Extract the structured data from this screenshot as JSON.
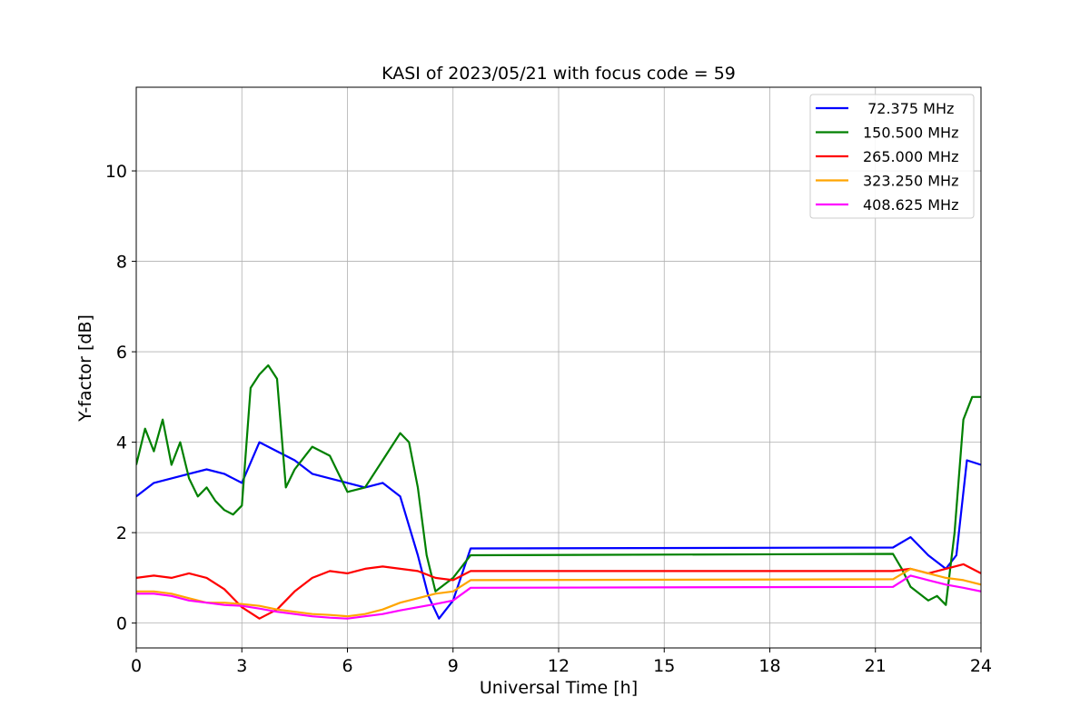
{
  "chart_data": {
    "type": "line",
    "title": "KASI of 2023/05/21 with focus code = 59",
    "xlabel": "Universal Time [h]",
    "ylabel": "Y-factor [dB]",
    "xlim": [
      0,
      24
    ],
    "ylim": [
      -0.55,
      11.85
    ],
    "xticks": [
      0,
      3,
      6,
      9,
      12,
      15,
      18,
      21,
      24
    ],
    "yticks": [
      0,
      2,
      4,
      6,
      8,
      10
    ],
    "grid": true,
    "legend_position": "top-right",
    "series": [
      {
        "name": " 72.375 MHz",
        "color": "#0000ff",
        "x": [
          0,
          0.5,
          1,
          1.5,
          2,
          2.5,
          3,
          3.5,
          4,
          4.5,
          5,
          5.5,
          6,
          6.5,
          7,
          7.5,
          8,
          8.3,
          8.6,
          9,
          9.5,
          21.5,
          22,
          22.5,
          23,
          23.3,
          23.6,
          24
        ],
        "y": [
          2.8,
          3.1,
          3.2,
          3.3,
          3.4,
          3.3,
          3.1,
          4.0,
          3.8,
          3.6,
          3.3,
          3.2,
          3.1,
          3.0,
          3.1,
          2.8,
          1.5,
          0.6,
          0.1,
          0.5,
          1.65,
          1.67,
          1.9,
          1.5,
          1.2,
          1.5,
          3.6,
          3.5
        ]
      },
      {
        "name": "150.500 MHz",
        "color": "#008000",
        "x": [
          0,
          0.25,
          0.5,
          0.75,
          1,
          1.25,
          1.5,
          1.75,
          2,
          2.25,
          2.5,
          2.75,
          3,
          3.25,
          3.5,
          3.75,
          4,
          4.25,
          4.5,
          5,
          5.5,
          6,
          6.5,
          7,
          7.5,
          7.75,
          8,
          8.25,
          8.5,
          9,
          9.5,
          21.5,
          21.75,
          22,
          22.5,
          22.75,
          23,
          23.25,
          23.5,
          23.75,
          24
        ],
        "y": [
          3.5,
          4.3,
          3.8,
          4.5,
          3.5,
          4.0,
          3.2,
          2.8,
          3.0,
          2.7,
          2.5,
          2.4,
          2.6,
          5.2,
          5.5,
          5.7,
          5.4,
          3.0,
          3.4,
          3.9,
          3.7,
          2.9,
          3.0,
          3.6,
          4.2,
          4.0,
          3.0,
          1.5,
          0.7,
          1.0,
          1.5,
          1.53,
          1.2,
          0.8,
          0.5,
          0.6,
          0.4,
          2.0,
          4.5,
          5.0,
          5.0
        ]
      },
      {
        "name": "265.000 MHz",
        "color": "#ff0000",
        "x": [
          0,
          0.5,
          1,
          1.5,
          2,
          2.5,
          3,
          3.5,
          4,
          4.5,
          5,
          5.5,
          6,
          6.5,
          7,
          7.5,
          8,
          8.5,
          9,
          9.5,
          21.5,
          22,
          22.5,
          23,
          23.5,
          24
        ],
        "y": [
          1.0,
          1.05,
          1.0,
          1.1,
          1.0,
          0.75,
          0.35,
          0.1,
          0.3,
          0.7,
          1.0,
          1.15,
          1.1,
          1.2,
          1.25,
          1.2,
          1.15,
          1.0,
          0.95,
          1.15,
          1.15,
          1.2,
          1.1,
          1.2,
          1.3,
          1.1
        ]
      },
      {
        "name": "323.250 MHz",
        "color": "#ffa500",
        "x": [
          0,
          0.5,
          1,
          1.5,
          2,
          2.5,
          3,
          3.5,
          4,
          4.5,
          5,
          5.5,
          6,
          6.5,
          7,
          7.5,
          8,
          8.5,
          9,
          9.5,
          21.5,
          22,
          22.5,
          23,
          23.5,
          24
        ],
        "y": [
          0.7,
          0.7,
          0.65,
          0.55,
          0.45,
          0.45,
          0.42,
          0.38,
          0.3,
          0.25,
          0.2,
          0.18,
          0.15,
          0.2,
          0.3,
          0.45,
          0.55,
          0.65,
          0.7,
          0.95,
          0.97,
          1.2,
          1.1,
          1.0,
          0.95,
          0.85
        ]
      },
      {
        "name": "408.625 MHz",
        "color": "#ff00ff",
        "x": [
          0,
          0.5,
          1,
          1.5,
          2,
          2.5,
          3,
          3.5,
          4,
          4.5,
          5,
          5.5,
          6,
          6.5,
          7,
          7.5,
          8,
          8.5,
          9,
          9.5,
          21.5,
          22,
          22.5,
          23,
          23.5,
          24
        ],
        "y": [
          0.65,
          0.65,
          0.6,
          0.5,
          0.45,
          0.4,
          0.38,
          0.32,
          0.25,
          0.2,
          0.15,
          0.12,
          0.1,
          0.15,
          0.2,
          0.28,
          0.35,
          0.42,
          0.5,
          0.78,
          0.8,
          1.05,
          0.95,
          0.85,
          0.78,
          0.7
        ]
      }
    ]
  }
}
